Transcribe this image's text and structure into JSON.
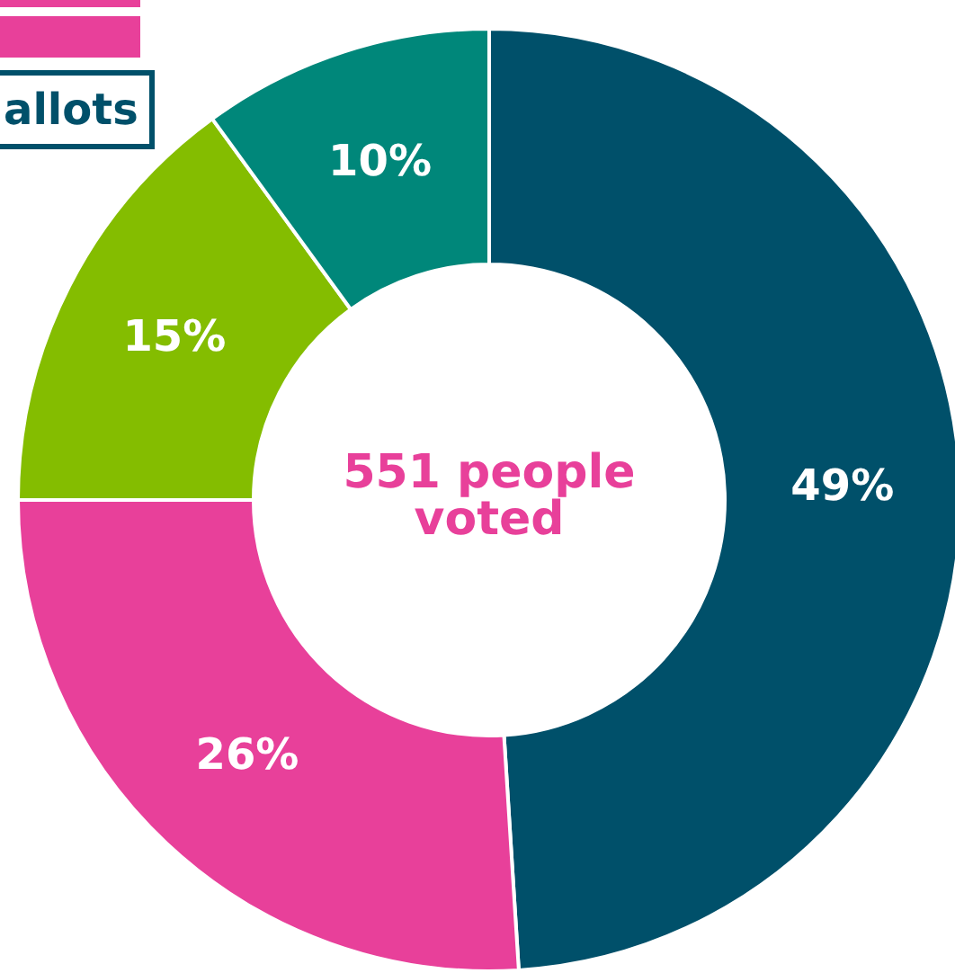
{
  "chart_data": {
    "type": "donut",
    "categories": [
      null,
      null,
      null,
      null
    ],
    "values": [
      49,
      26,
      15,
      10
    ],
    "colors": [
      "#00506a",
      "#e8409a",
      "#84bd00",
      "#00877a"
    ],
    "value_labels": [
      "49%",
      "26%",
      "15%",
      "10%"
    ],
    "annotations": [
      "551 people voted",
      "allots"
    ],
    "legend": false
  }
}
